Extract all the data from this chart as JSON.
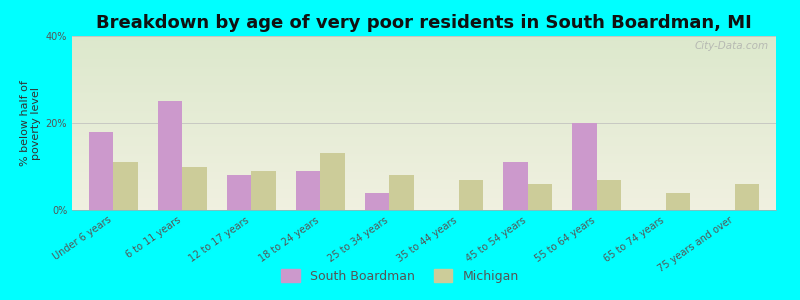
{
  "title": "Breakdown by age of very poor residents in South Boardman, MI",
  "ylabel": "% below half of\npoverty level",
  "categories": [
    "Under 6 years",
    "6 to 11 years",
    "12 to 17 years",
    "18 to 24 years",
    "25 to 34 years",
    "35 to 44 years",
    "45 to 54 years",
    "55 to 64 years",
    "65 to 74 years",
    "75 years and over"
  ],
  "south_boardman": [
    18.0,
    25.0,
    8.0,
    9.0,
    4.0,
    0.0,
    11.0,
    20.0,
    0.0,
    0.0
  ],
  "michigan": [
    11.0,
    10.0,
    9.0,
    13.0,
    8.0,
    7.0,
    6.0,
    7.0,
    4.0,
    6.0
  ],
  "sb_color": "#cc99cc",
  "mi_color": "#cccc99",
  "background_outer": "#00ffff",
  "background_plot_top": "#dce8cc",
  "background_plot_bottom": "#f0f0e0",
  "ylim": [
    0,
    40
  ],
  "yticks": [
    0,
    20,
    40
  ],
  "ytick_labels": [
    "0%",
    "20%",
    "40%"
  ],
  "title_fontsize": 13,
  "axis_label_fontsize": 8,
  "tick_fontsize": 7,
  "legend_labels": [
    "South Boardman",
    "Michigan"
  ],
  "watermark": "City-Data.com"
}
